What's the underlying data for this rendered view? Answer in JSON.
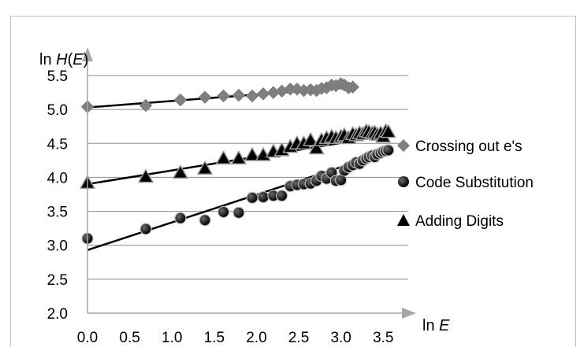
{
  "chart_data": {
    "type": "scatter",
    "title": "",
    "ylabel_prefix": "ln ",
    "ylabel_italic": "H",
    "ylabel_paren_open": "(",
    "ylabel_italic_arg": "E",
    "ylabel_paren_close": ")",
    "xlabel_prefix": "ln ",
    "xlabel_italic": "E",
    "xlim": [
      0,
      3.6
    ],
    "ylim": [
      2.0,
      5.5
    ],
    "x_ticks": [
      "0.0",
      "0.5",
      "1.0",
      "1.5",
      "2.0",
      "2.5",
      "3.0",
      "3.5"
    ],
    "y_ticks": [
      "2.0",
      "2.5",
      "3.0",
      "3.5",
      "4.0",
      "4.5",
      "5.0",
      "5.5"
    ],
    "grid": "horizontal",
    "legend_position": "right",
    "series": [
      {
        "name": "Crossing out e's",
        "marker": "diamond",
        "color": "#7f7f7f",
        "points": [
          [
            0.0,
            5.04
          ],
          [
            0.69,
            5.06
          ],
          [
            1.1,
            5.14
          ],
          [
            1.39,
            5.18
          ],
          [
            1.61,
            5.2
          ],
          [
            1.79,
            5.21
          ],
          [
            1.95,
            5.2
          ],
          [
            2.08,
            5.23
          ],
          [
            2.2,
            5.25
          ],
          [
            2.3,
            5.27
          ],
          [
            2.4,
            5.3
          ],
          [
            2.48,
            5.3
          ],
          [
            2.56,
            5.28
          ],
          [
            2.64,
            5.29
          ],
          [
            2.71,
            5.28
          ],
          [
            2.77,
            5.31
          ],
          [
            2.83,
            5.32
          ],
          [
            2.89,
            5.36
          ],
          [
            2.94,
            5.35
          ],
          [
            3.0,
            5.38
          ],
          [
            3.04,
            5.36
          ],
          [
            3.09,
            5.32
          ],
          [
            3.14,
            5.33
          ]
        ],
        "fit": [
          [
            0.0,
            5.03
          ],
          [
            3.14,
            5.33
          ]
        ]
      },
      {
        "name": "Code Substitution",
        "marker": "circle",
        "color": "#000000",
        "points": [
          [
            0.0,
            3.1
          ],
          [
            0.69,
            3.24
          ],
          [
            1.1,
            3.4
          ],
          [
            1.39,
            3.37
          ],
          [
            1.61,
            3.49
          ],
          [
            1.79,
            3.48
          ],
          [
            1.95,
            3.7
          ],
          [
            2.08,
            3.71
          ],
          [
            2.2,
            3.73
          ],
          [
            2.3,
            3.73
          ],
          [
            2.4,
            3.87
          ],
          [
            2.48,
            3.89
          ],
          [
            2.56,
            3.9
          ],
          [
            2.64,
            3.91
          ],
          [
            2.71,
            3.95
          ],
          [
            2.77,
            4.02
          ],
          [
            2.83,
            3.98
          ],
          [
            2.89,
            4.07
          ],
          [
            2.94,
            3.95
          ],
          [
            3.0,
            3.96
          ],
          [
            3.04,
            4.1
          ],
          [
            3.09,
            4.15
          ],
          [
            3.14,
            4.18
          ],
          [
            3.18,
            4.22
          ],
          [
            3.22,
            4.2
          ],
          [
            3.26,
            4.25
          ],
          [
            3.3,
            4.28
          ],
          [
            3.33,
            4.3
          ],
          [
            3.37,
            4.32
          ],
          [
            3.4,
            4.3
          ],
          [
            3.43,
            4.34
          ],
          [
            3.47,
            4.36
          ],
          [
            3.5,
            4.38
          ],
          [
            3.53,
            4.39
          ],
          [
            3.56,
            4.4
          ]
        ],
        "fit": [
          [
            0.0,
            2.93
          ],
          [
            3.56,
            4.38
          ]
        ]
      },
      {
        "name": "Adding Digits",
        "marker": "triangle",
        "color": "#000000",
        "points": [
          [
            0.0,
            3.92
          ],
          [
            0.69,
            4.01
          ],
          [
            1.1,
            4.07
          ],
          [
            1.39,
            4.13
          ],
          [
            1.61,
            4.28
          ],
          [
            1.79,
            4.28
          ],
          [
            1.95,
            4.33
          ],
          [
            2.08,
            4.33
          ],
          [
            2.2,
            4.38
          ],
          [
            2.3,
            4.4
          ],
          [
            2.4,
            4.45
          ],
          [
            2.48,
            4.5
          ],
          [
            2.56,
            4.5
          ],
          [
            2.64,
            4.55
          ],
          [
            2.71,
            4.43
          ],
          [
            2.77,
            4.55
          ],
          [
            2.83,
            4.58
          ],
          [
            2.89,
            4.6
          ],
          [
            2.94,
            4.58
          ],
          [
            3.0,
            4.6
          ],
          [
            3.04,
            4.62
          ],
          [
            3.09,
            4.58
          ],
          [
            3.14,
            4.64
          ],
          [
            3.18,
            4.62
          ],
          [
            3.22,
            4.65
          ],
          [
            3.26,
            4.64
          ],
          [
            3.3,
            4.68
          ],
          [
            3.33,
            4.67
          ],
          [
            3.37,
            4.65
          ],
          [
            3.4,
            4.66
          ],
          [
            3.43,
            4.63
          ],
          [
            3.47,
            4.65
          ],
          [
            3.5,
            4.6
          ],
          [
            3.53,
            4.68
          ],
          [
            3.56,
            4.67
          ]
        ],
        "fit": [
          [
            0.0,
            3.9
          ],
          [
            3.56,
            4.62
          ]
        ]
      }
    ]
  }
}
